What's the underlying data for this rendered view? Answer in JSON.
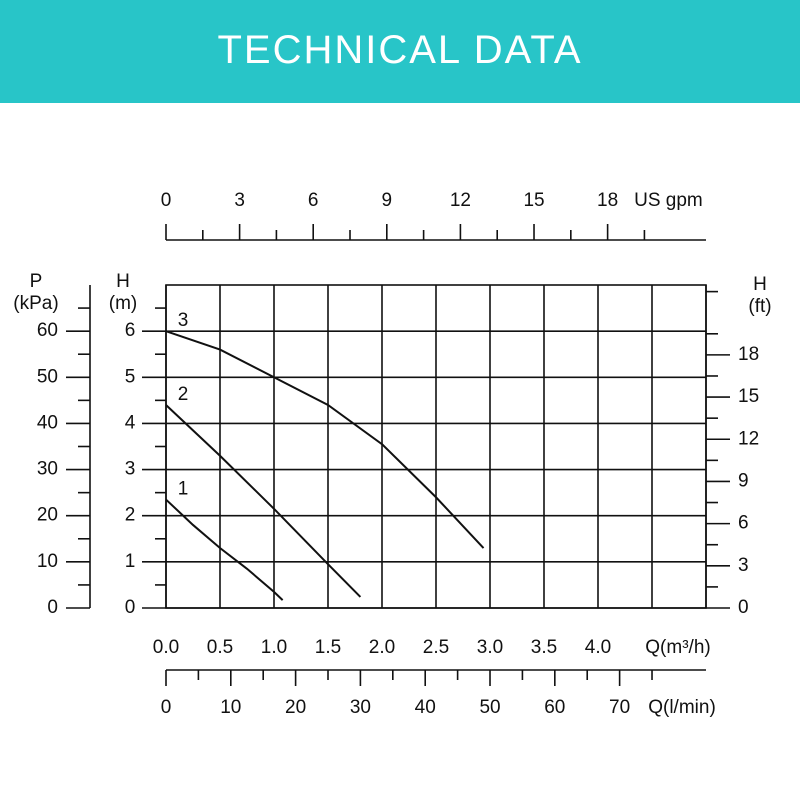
{
  "header": {
    "title": "TECHNICAL DATA"
  },
  "chart_data": {
    "type": "line",
    "xlabel": "Q(m³/h)",
    "ylabel_lines": [
      "H",
      "(m)"
    ],
    "xlim": [
      0,
      5
    ],
    "xticks": [
      {
        "value": 0,
        "label": "0.0"
      },
      0.5,
      {
        "value": 1,
        "label": "1.0"
      },
      1.5,
      {
        "value": 2,
        "label": "2.0"
      },
      2.5,
      {
        "value": 3,
        "label": "3.0"
      },
      3.5,
      {
        "value": 4,
        "label": "4.0"
      }
    ],
    "ylim": [
      0,
      7
    ],
    "yticks": [
      0,
      1,
      2,
      3,
      4,
      5,
      6
    ],
    "grid": true,
    "color": "#111111",
    "series": [
      {
        "name": "1",
        "x": [
          0,
          0.25,
          0.5,
          0.75,
          1.0,
          1.08
        ],
        "values": [
          2.35,
          1.8,
          1.3,
          0.85,
          0.35,
          0.17
        ]
      },
      {
        "name": "2",
        "x": [
          0,
          0.5,
          1.0,
          1.5,
          1.8
        ],
        "values": [
          4.4,
          3.3,
          2.15,
          0.95,
          0.24
        ]
      },
      {
        "name": "3",
        "x": [
          0,
          0.5,
          1.0,
          1.5,
          2.0,
          2.5,
          2.94
        ],
        "values": [
          6.0,
          5.6,
          5.0,
          4.4,
          3.55,
          2.4,
          1.3
        ]
      }
    ],
    "top_axis": {
      "label": "US gpm",
      "lim": [
        0,
        22.01
      ],
      "ticks": [
        0,
        3,
        6,
        9,
        12,
        15,
        18
      ]
    },
    "bottom_axis": {
      "label": "Q(l/min)",
      "lim": [
        0,
        83.33
      ],
      "ticks": [
        0,
        10,
        20,
        30,
        40,
        50,
        60,
        70
      ]
    },
    "left_axis": {
      "label_lines": [
        "P",
        "(kPa)"
      ],
      "lim": [
        0,
        70
      ],
      "ticks": [
        0,
        10,
        20,
        30,
        40,
        50,
        60
      ]
    },
    "right_axis": {
      "label_lines": [
        "H",
        "(ft)"
      ],
      "lim": [
        0,
        22.97
      ],
      "ticks": [
        0,
        3,
        6,
        9,
        12,
        15,
        18
      ]
    }
  }
}
